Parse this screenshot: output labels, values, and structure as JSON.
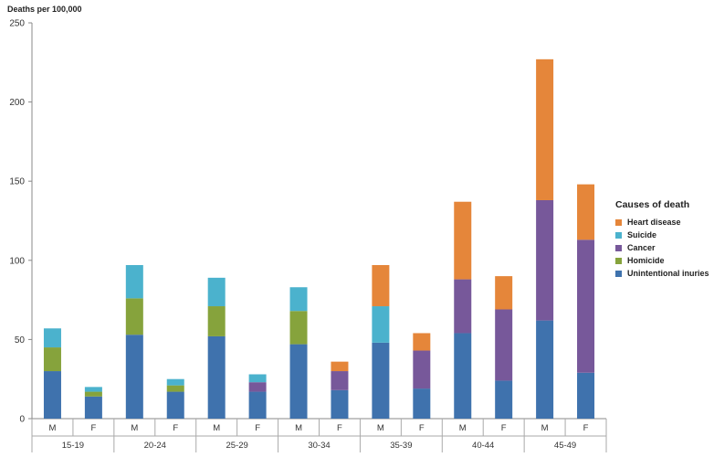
{
  "chart_data": {
    "type": "bar",
    "stacked": true,
    "ylabel": "Deaths per 100,000",
    "ylim": [
      0,
      250
    ],
    "yticks": [
      0,
      50,
      100,
      150,
      200,
      250
    ],
    "groups": [
      "15-19",
      "20-24",
      "25-29",
      "30-34",
      "35-39",
      "40-44",
      "45-49"
    ],
    "sexes": [
      "M",
      "F"
    ],
    "categories": [
      "15-19 M",
      "15-19 F",
      "20-24 M",
      "20-24 F",
      "25-29 M",
      "25-29 F",
      "30-34 M",
      "30-34 F",
      "35-39 M",
      "35-39 F",
      "40-44 M",
      "40-44 F",
      "45-49 M",
      "45-49 F"
    ],
    "legend_title": "Causes of death",
    "legend_position": "right",
    "series": [
      {
        "name": "Unintentional inuries",
        "color": "#3f72ad",
        "values": [
          30,
          14,
          53,
          17,
          52,
          17,
          47,
          18,
          48,
          19,
          54,
          24,
          62,
          29
        ]
      },
      {
        "name": "Homicide",
        "color": "#86a33c",
        "values": [
          15,
          3,
          23,
          4,
          19,
          0,
          21,
          0,
          0,
          0,
          0,
          0,
          0,
          0
        ]
      },
      {
        "name": "Cancer",
        "color": "#77589a",
        "values": [
          0,
          0,
          0,
          0,
          0,
          6,
          0,
          12,
          0,
          24,
          34,
          45,
          76,
          84
        ]
      },
      {
        "name": "Suicide",
        "color": "#4bb2cd",
        "values": [
          12,
          3,
          21,
          4,
          18,
          5,
          15,
          0,
          23,
          0,
          0,
          0,
          0,
          0
        ]
      },
      {
        "name": "Heart disease",
        "color": "#e5863a",
        "values": [
          0,
          0,
          0,
          0,
          0,
          0,
          0,
          6,
          26,
          11,
          49,
          21,
          89,
          35
        ]
      }
    ]
  }
}
